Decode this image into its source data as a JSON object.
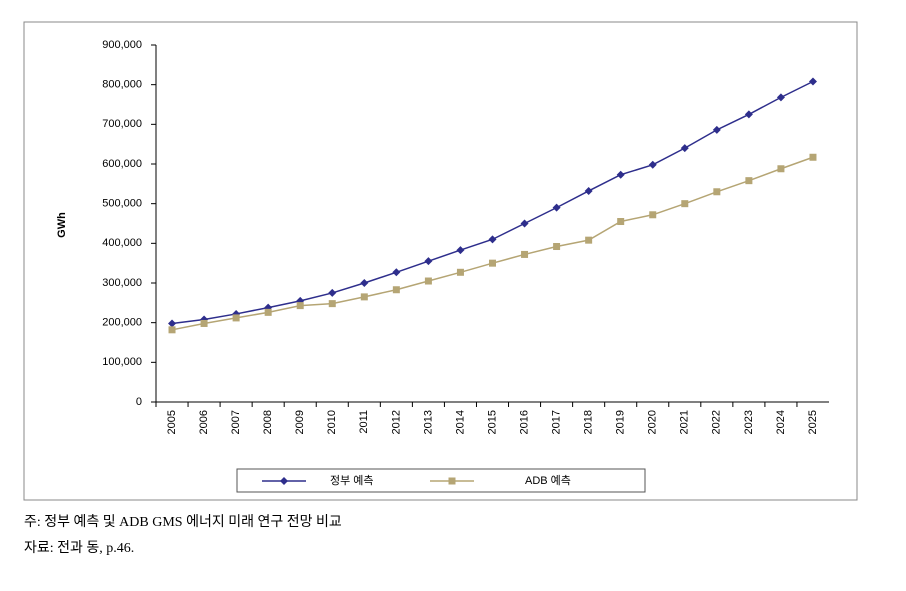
{
  "chart_data": {
    "type": "line",
    "y_label": "GWh",
    "categories": [
      "2005",
      "2006",
      "2007",
      "2008",
      "2009",
      "2010",
      "2011",
      "2012",
      "2013",
      "2014",
      "2015",
      "2016",
      "2017",
      "2018",
      "2019",
      "2020",
      "2021",
      "2022",
      "2023",
      "2024",
      "2025"
    ],
    "series": [
      {
        "name": "정부 예측",
        "color": "#2e2e8c",
        "marker": "diamond",
        "values": [
          198000,
          208000,
          222000,
          238000,
          255000,
          275000,
          300000,
          327000,
          355000,
          383000,
          410000,
          450000,
          490000,
          532000,
          573000,
          598000,
          640000,
          686000,
          725000,
          768000,
          808000
        ]
      },
      {
        "name": "ADB 예측",
        "color": "#b5a574",
        "marker": "square",
        "values": [
          182000,
          198000,
          212000,
          226000,
          243000,
          248000,
          265000,
          283000,
          305000,
          327000,
          350000,
          372000,
          392000,
          408000,
          455000,
          472000,
          500000,
          530000,
          558000,
          588000,
          617000
        ]
      }
    ],
    "ylim": [
      0,
      900000
    ],
    "yticks": [
      0,
      {
        "value": 100000,
        "label": "100,000"
      },
      {
        "value": 200000,
        "label": "200,000"
      },
      {
        "value": 300000,
        "label": "300,000"
      },
      {
        "value": 400000,
        "label": "400,000"
      },
      {
        "value": 500000,
        "label": "500,000"
      },
      {
        "value": 600000,
        "label": "600,000"
      },
      {
        "value": 700000,
        "label": "700,000"
      },
      {
        "value": 800000,
        "label": "800,000"
      },
      {
        "value": 900000,
        "label": "900,000"
      }
    ],
    "grid": false,
    "legend": "bottom"
  },
  "notes": [
    "주: 정부 예측 및 ADB GMS 에너지 미래 연구 전망 비교",
    "자료: 전과 동, p.46."
  ]
}
